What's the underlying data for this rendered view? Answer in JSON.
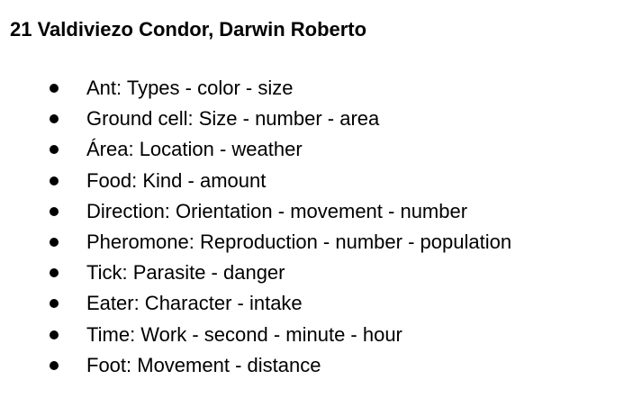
{
  "document": {
    "heading": "21 Valdiviezo Condor, Darwin Roberto",
    "items": [
      "Ant: Types - color - size",
      "Ground cell: Size - number - area",
      "Área: Location - weather",
      "Food: Kind - amount",
      "Direction: Orientation - movement - number",
      "Pheromone: Reproduction - number - population",
      "Tick: Parasite - danger",
      "Eater: Character - intake",
      "Time: Work - second - minute - hour",
      "Foot: Movement - distance"
    ]
  }
}
